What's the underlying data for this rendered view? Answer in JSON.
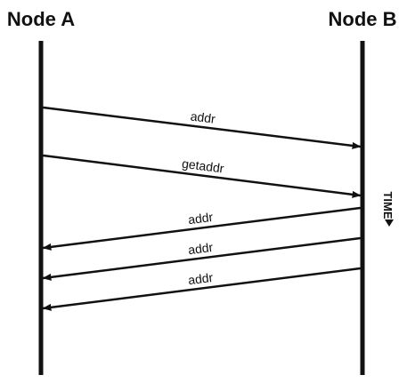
{
  "nodes": {
    "a": {
      "label": "Node A"
    },
    "b": {
      "label": "Node B"
    }
  },
  "time_label": "TIME",
  "messages": [
    {
      "label": "addr",
      "from": "a",
      "to": "b"
    },
    {
      "label": "getaddr",
      "from": "a",
      "to": "b"
    },
    {
      "label": "addr",
      "from": "b",
      "to": "a"
    },
    {
      "label": "addr",
      "from": "b",
      "to": "a"
    },
    {
      "label": "addr",
      "from": "b",
      "to": "a"
    }
  ]
}
